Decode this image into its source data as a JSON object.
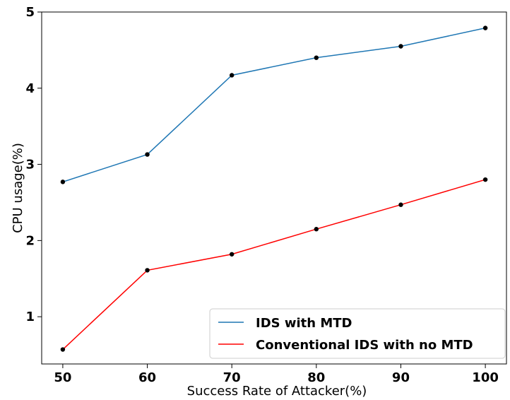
{
  "chart_data": {
    "type": "line",
    "title": "",
    "xlabel": "Success Rate of Attacker(%)",
    "ylabel": "CPU usage(%)",
    "x": [
      50,
      60,
      70,
      80,
      90,
      100
    ],
    "xticks": [
      "50",
      "60",
      "70",
      "80",
      "90",
      "100"
    ],
    "yticks": [
      "1",
      "2",
      "3",
      "4",
      "5"
    ],
    "xlim": [
      47.5,
      102.5
    ],
    "ylim": [
      0.38,
      5.0
    ],
    "grid": false,
    "legend_position": "lower-right",
    "series": [
      {
        "name": "IDS with MTD",
        "color": "#1f77b4",
        "values": [
          2.77,
          3.13,
          4.17,
          4.4,
          4.55,
          4.79
        ]
      },
      {
        "name": "Conventional IDS with no MTD",
        "color": "#ff0000",
        "values": [
          0.57,
          1.61,
          1.82,
          2.15,
          2.47,
          2.8
        ]
      }
    ],
    "marker_color": "#000000"
  }
}
